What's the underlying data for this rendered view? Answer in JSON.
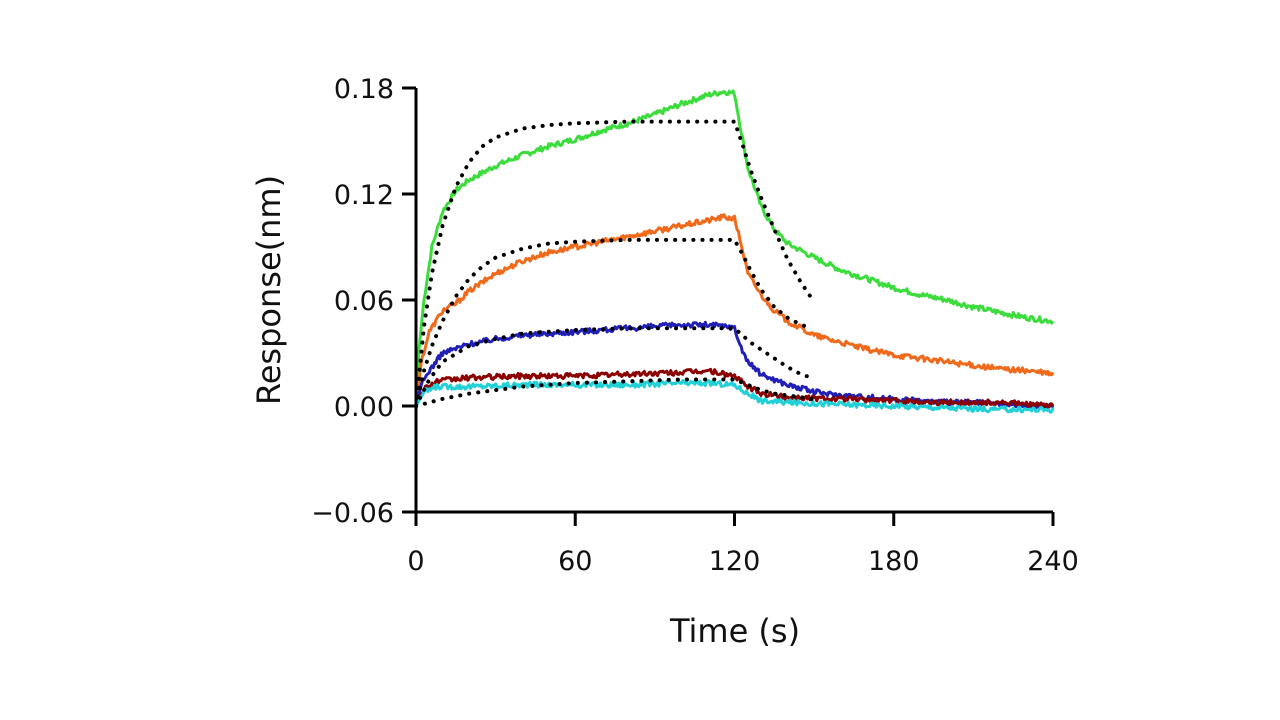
{
  "chart_data": {
    "type": "line",
    "title": "",
    "xlabel": "Time (s)",
    "ylabel": "Response(nm)",
    "xlim": [
      0,
      240
    ],
    "ylim": [
      -0.06,
      0.18
    ],
    "xticks": [
      0,
      60,
      120,
      180,
      240
    ],
    "yticks": [
      -0.06,
      0.0,
      0.06,
      0.12,
      0.18
    ],
    "xtick_labels": [
      "0",
      "60",
      "120",
      "180",
      "240"
    ],
    "ytick_labels": [
      "−0.06",
      "0.00",
      "0.06",
      "0.12",
      "0.18"
    ],
    "grid": false,
    "legend": "none",
    "series": [
      {
        "color": "#3ddc3d",
        "style": "solid",
        "points": [
          [
            0,
            0.0
          ],
          [
            1,
            0.03
          ],
          [
            3,
            0.06
          ],
          [
            6,
            0.09
          ],
          [
            10,
            0.11
          ],
          [
            15,
            0.122
          ],
          [
            20,
            0.128
          ],
          [
            30,
            0.136
          ],
          [
            40,
            0.142
          ],
          [
            50,
            0.147
          ],
          [
            60,
            0.151
          ],
          [
            70,
            0.156
          ],
          [
            80,
            0.16
          ],
          [
            90,
            0.165
          ],
          [
            100,
            0.171
          ],
          [
            110,
            0.176
          ],
          [
            116,
            0.178
          ],
          [
            120,
            0.177
          ],
          [
            122,
            0.16
          ],
          [
            125,
            0.135
          ],
          [
            130,
            0.113
          ],
          [
            135,
            0.1
          ],
          [
            140,
            0.092
          ],
          [
            150,
            0.084
          ],
          [
            160,
            0.077
          ],
          [
            170,
            0.072
          ],
          [
            180,
            0.067
          ],
          [
            190,
            0.063
          ],
          [
            200,
            0.06
          ],
          [
            210,
            0.056
          ],
          [
            220,
            0.053
          ],
          [
            230,
            0.05
          ],
          [
            240,
            0.048
          ]
        ]
      },
      {
        "color": "#f06a1c",
        "style": "solid",
        "points": [
          [
            0,
            0.0
          ],
          [
            2,
            0.025
          ],
          [
            5,
            0.042
          ],
          [
            10,
            0.054
          ],
          [
            15,
            0.058
          ],
          [
            20,
            0.065
          ],
          [
            30,
            0.075
          ],
          [
            40,
            0.082
          ],
          [
            50,
            0.087
          ],
          [
            60,
            0.09
          ],
          [
            70,
            0.093
          ],
          [
            80,
            0.096
          ],
          [
            90,
            0.099
          ],
          [
            100,
            0.102
          ],
          [
            110,
            0.105
          ],
          [
            116,
            0.107
          ],
          [
            120,
            0.106
          ],
          [
            122,
            0.095
          ],
          [
            125,
            0.075
          ],
          [
            130,
            0.063
          ],
          [
            135,
            0.054
          ],
          [
            140,
            0.048
          ],
          [
            150,
            0.04
          ],
          [
            160,
            0.036
          ],
          [
            170,
            0.032
          ],
          [
            180,
            0.029
          ],
          [
            190,
            0.027
          ],
          [
            200,
            0.025
          ],
          [
            210,
            0.023
          ],
          [
            220,
            0.021
          ],
          [
            230,
            0.02
          ],
          [
            240,
            0.018
          ]
        ]
      },
      {
        "color": "#2020b8",
        "style": "solid",
        "points": [
          [
            0,
            0.0
          ],
          [
            2,
            0.012
          ],
          [
            5,
            0.02
          ],
          [
            10,
            0.03
          ],
          [
            20,
            0.035
          ],
          [
            30,
            0.038
          ],
          [
            40,
            0.04
          ],
          [
            50,
            0.041
          ],
          [
            60,
            0.042
          ],
          [
            70,
            0.043
          ],
          [
            80,
            0.044
          ],
          [
            90,
            0.045
          ],
          [
            100,
            0.046
          ],
          [
            110,
            0.046
          ],
          [
            118,
            0.045
          ],
          [
            120,
            0.044
          ],
          [
            122,
            0.035
          ],
          [
            125,
            0.025
          ],
          [
            130,
            0.018
          ],
          [
            140,
            0.012
          ],
          [
            150,
            0.008
          ],
          [
            160,
            0.006
          ],
          [
            170,
            0.005
          ],
          [
            180,
            0.004
          ],
          [
            190,
            0.003
          ],
          [
            200,
            0.002
          ],
          [
            210,
            0.002
          ],
          [
            220,
            0.001
          ],
          [
            230,
            0.0
          ],
          [
            240,
            0.0
          ]
        ]
      },
      {
        "color": "#8b0000",
        "style": "solid",
        "points": [
          [
            0,
            0.0
          ],
          [
            3,
            0.01
          ],
          [
            8,
            0.014
          ],
          [
            20,
            0.016
          ],
          [
            40,
            0.017
          ],
          [
            60,
            0.017
          ],
          [
            80,
            0.018
          ],
          [
            100,
            0.019
          ],
          [
            110,
            0.02
          ],
          [
            120,
            0.017
          ],
          [
            124,
            0.012
          ],
          [
            130,
            0.007
          ],
          [
            140,
            0.005
          ],
          [
            160,
            0.004
          ],
          [
            180,
            0.003
          ],
          [
            200,
            0.002
          ],
          [
            220,
            0.002
          ],
          [
            240,
            0.0
          ]
        ]
      },
      {
        "color": "#22d0d8",
        "style": "solid",
        "points": [
          [
            0,
            0.0
          ],
          [
            3,
            0.008
          ],
          [
            8,
            0.011
          ],
          [
            20,
            0.011
          ],
          [
            40,
            0.012
          ],
          [
            60,
            0.012
          ],
          [
            80,
            0.012
          ],
          [
            100,
            0.013
          ],
          [
            110,
            0.013
          ],
          [
            120,
            0.012
          ],
          [
            124,
            0.008
          ],
          [
            130,
            0.003
          ],
          [
            140,
            0.002
          ],
          [
            160,
            0.001
          ],
          [
            180,
            0.0
          ],
          [
            200,
            -0.001
          ],
          [
            220,
            -0.002
          ],
          [
            240,
            -0.002
          ]
        ]
      },
      {
        "color": "#000000",
        "style": "dotted",
        "points": [
          [
            0,
            0.0
          ],
          [
            3,
            0.045
          ],
          [
            6,
            0.075
          ],
          [
            10,
            0.102
          ],
          [
            15,
            0.124
          ],
          [
            20,
            0.138
          ],
          [
            25,
            0.147
          ],
          [
            30,
            0.152
          ],
          [
            40,
            0.157
          ],
          [
            50,
            0.159
          ],
          [
            60,
            0.16
          ],
          [
            80,
            0.161
          ],
          [
            100,
            0.161
          ],
          [
            120,
            0.161
          ],
          [
            123,
            0.148
          ],
          [
            126,
            0.134
          ],
          [
            130,
            0.118
          ],
          [
            135,
            0.1
          ],
          [
            140,
            0.083
          ],
          [
            145,
            0.07
          ],
          [
            149,
            0.061
          ]
        ]
      },
      {
        "color": "#000000",
        "style": "dotted",
        "points": [
          [
            0,
            0.0
          ],
          [
            3,
            0.02
          ],
          [
            6,
            0.034
          ],
          [
            10,
            0.048
          ],
          [
            15,
            0.062
          ],
          [
            20,
            0.072
          ],
          [
            25,
            0.079
          ],
          [
            30,
            0.084
          ],
          [
            40,
            0.089
          ],
          [
            50,
            0.092
          ],
          [
            60,
            0.093
          ],
          [
            80,
            0.094
          ],
          [
            100,
            0.094
          ],
          [
            120,
            0.094
          ],
          [
            123,
            0.086
          ],
          [
            126,
            0.077
          ],
          [
            130,
            0.066
          ],
          [
            135,
            0.056
          ],
          [
            140,
            0.05
          ],
          [
            145,
            0.046
          ],
          [
            149,
            0.044
          ]
        ]
      },
      {
        "color": "#000000",
        "style": "dotted",
        "points": [
          [
            0,
            0.0
          ],
          [
            5,
            0.015
          ],
          [
            10,
            0.025
          ],
          [
            20,
            0.034
          ],
          [
            30,
            0.038
          ],
          [
            40,
            0.041
          ],
          [
            60,
            0.043
          ],
          [
            80,
            0.044
          ],
          [
            100,
            0.044
          ],
          [
            120,
            0.044
          ],
          [
            123,
            0.04
          ],
          [
            126,
            0.036
          ],
          [
            130,
            0.032
          ],
          [
            135,
            0.027
          ],
          [
            140,
            0.022
          ],
          [
            145,
            0.018
          ],
          [
            149,
            0.016
          ]
        ]
      },
      {
        "color": "#000000",
        "style": "dotted",
        "points": [
          [
            0,
            0.0
          ],
          [
            10,
            0.004
          ],
          [
            20,
            0.007
          ],
          [
            30,
            0.009
          ],
          [
            40,
            0.011
          ],
          [
            60,
            0.013
          ],
          [
            80,
            0.014
          ],
          [
            100,
            0.015
          ],
          [
            120,
            0.015
          ],
          [
            125,
            0.012
          ],
          [
            130,
            0.009
          ],
          [
            135,
            0.007
          ],
          [
            140,
            0.006
          ],
          [
            145,
            0.005
          ],
          [
            149,
            0.004
          ]
        ]
      }
    ]
  }
}
